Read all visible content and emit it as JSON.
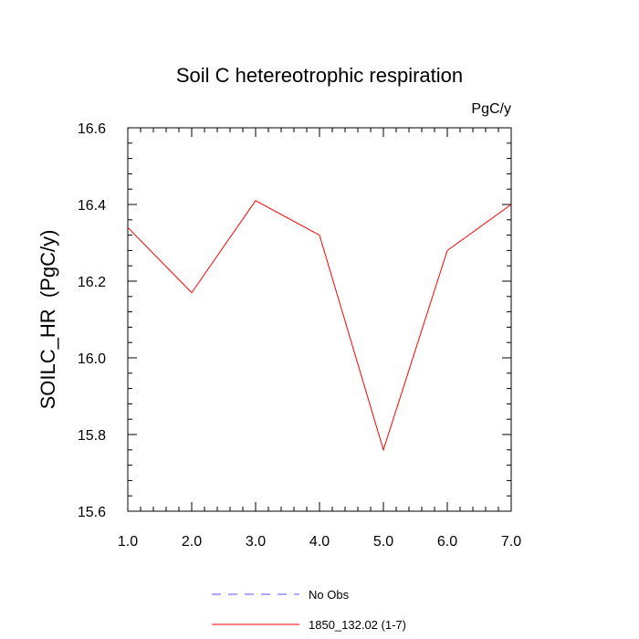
{
  "chart_data": {
    "type": "line",
    "title": "Soil C hetereotrophic respiration",
    "units_label": "PgC/y",
    "xlabel": "",
    "ylabel": "SOILC_HR  (PgC/y)",
    "xlim": [
      1.0,
      7.0
    ],
    "ylim": [
      15.6,
      16.6
    ],
    "x_ticks": [
      "1.0",
      "2.0",
      "3.0",
      "4.0",
      "5.0",
      "6.0",
      "7.0"
    ],
    "y_ticks": [
      "15.6",
      "15.8",
      "16.0",
      "16.2",
      "16.4",
      "16.6"
    ],
    "grid": false,
    "series": [
      {
        "name": "1850_132.02 (1-7)",
        "color": "#ff0000",
        "dash": "solid",
        "x": [
          1,
          2,
          3,
          4,
          5,
          6,
          7
        ],
        "y": [
          16.34,
          16.17,
          16.41,
          16.32,
          15.76,
          16.28,
          16.4
        ]
      }
    ],
    "legend": {
      "placement": "bottom-center",
      "entries": [
        {
          "label": "No Obs",
          "color": "#5555ff",
          "dash": "dashed"
        },
        {
          "label": "1850_132.02 (1-7)",
          "color": "#ff0000",
          "dash": "solid"
        }
      ]
    }
  }
}
